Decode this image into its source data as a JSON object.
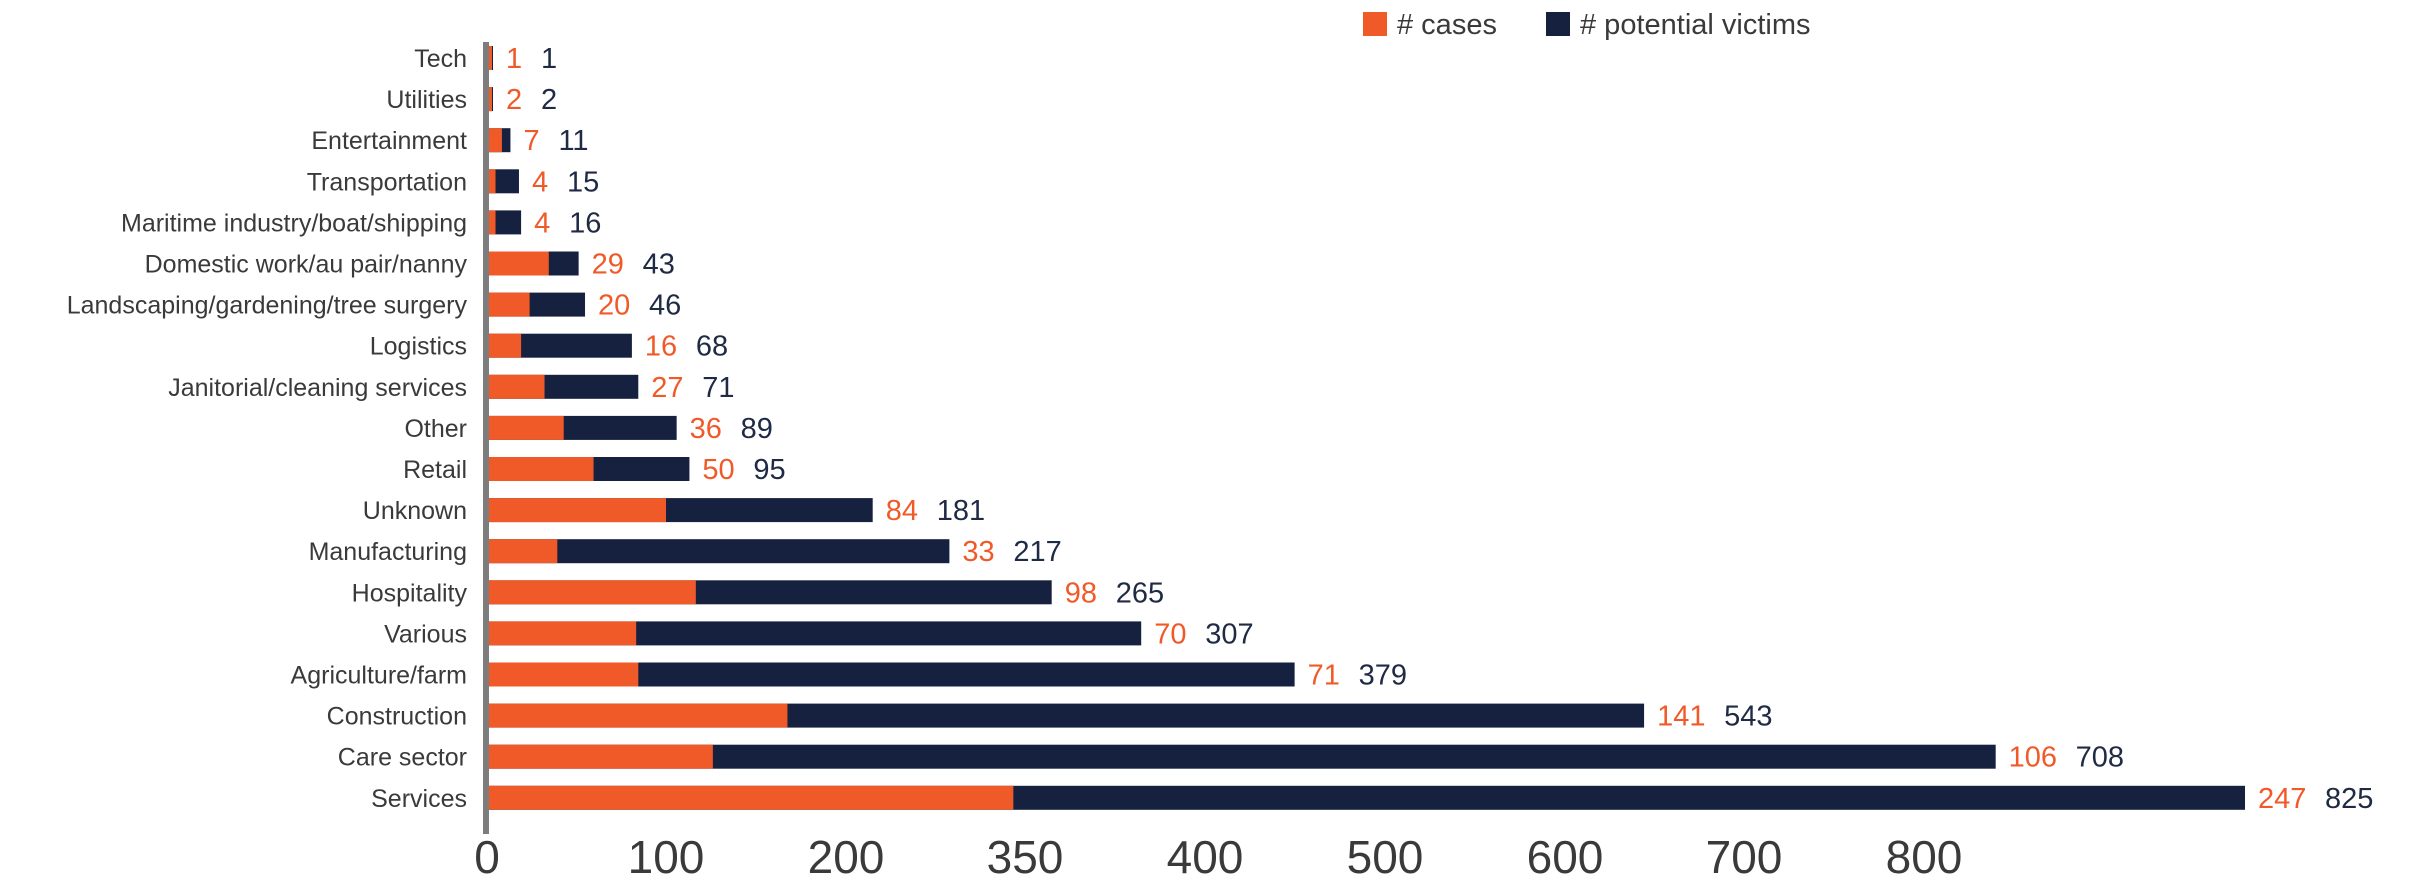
{
  "chart_data": {
    "type": "bar",
    "orientation": "horizontal",
    "stacking": "overlay",
    "categories": [
      "Tech",
      "Utilities",
      "Entertainment",
      "Transportation",
      "Maritime industry/boat/shipping",
      "Domestic work/au pair/nanny",
      "Landscaping/gardening/tree surgery",
      "Logistics",
      "Janitorial/cleaning services",
      "Other",
      "Retail",
      "Unknown",
      "Manufacturing",
      "Hospitality",
      "Various",
      "Agriculture/farm",
      "Construction",
      "Care sector",
      "Services"
    ],
    "series": [
      {
        "name": "# cases",
        "color": "#f05a28",
        "values": [
          1,
          2,
          7,
          4,
          4,
          29,
          20,
          16,
          27,
          36,
          50,
          84,
          33,
          98,
          70,
          71,
          141,
          106,
          247
        ]
      },
      {
        "name": "# potential victims",
        "color": "#15213f",
        "values": [
          1,
          2,
          11,
          15,
          16,
          43,
          46,
          68,
          71,
          89,
          95,
          181,
          217,
          265,
          307,
          379,
          543,
          708,
          825
        ]
      }
    ],
    "x_tick_labels": [
      "0",
      "100",
      "200",
      "350",
      "400",
      "500",
      "600",
      "700",
      "800"
    ],
    "xlim": [
      0,
      825
    ],
    "grid": false,
    "legend_position": "top-right"
  }
}
